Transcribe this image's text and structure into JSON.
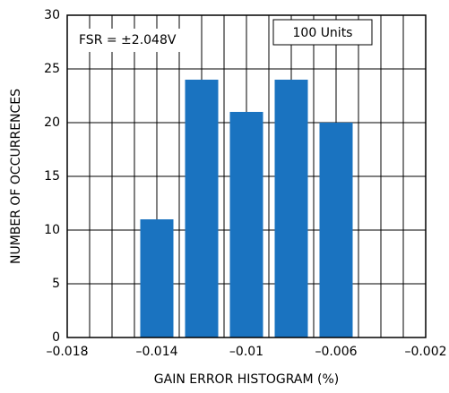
{
  "chart_data": {
    "type": "histogram",
    "xlabel": "GAIN ERROR HISTOGRAM (%)",
    "ylabel": "NUMBER OF OCCURRENCES",
    "annotations": [
      "FSR = ±2.048V",
      "100 Units"
    ],
    "bins": [
      -0.015,
      -0.013,
      -0.011,
      -0.009,
      -0.007,
      -0.005
    ],
    "values": [
      11,
      24,
      21,
      24,
      20
    ],
    "color": "#1a73c0",
    "xlim": [
      -0.018,
      -0.002
    ],
    "xticks": [
      {
        "value": -0.018,
        "label": "–0.018"
      },
      {
        "value": -0.014,
        "label": "–0.014"
      },
      {
        "value": -0.01,
        "label": "–0.01"
      },
      {
        "value": -0.006,
        "label": "–0.006"
      },
      {
        "value": -0.002,
        "label": "–0.002"
      }
    ],
    "xgrid": [
      -0.017,
      -0.016,
      -0.015,
      -0.013,
      -0.012,
      -0.011,
      -0.009,
      -0.008,
      -0.007,
      -0.005,
      -0.004,
      -0.003
    ],
    "ylim": [
      0,
      30
    ],
    "yticks": [
      0,
      5,
      10,
      15,
      20,
      25,
      30
    ],
    "grid": true
  }
}
